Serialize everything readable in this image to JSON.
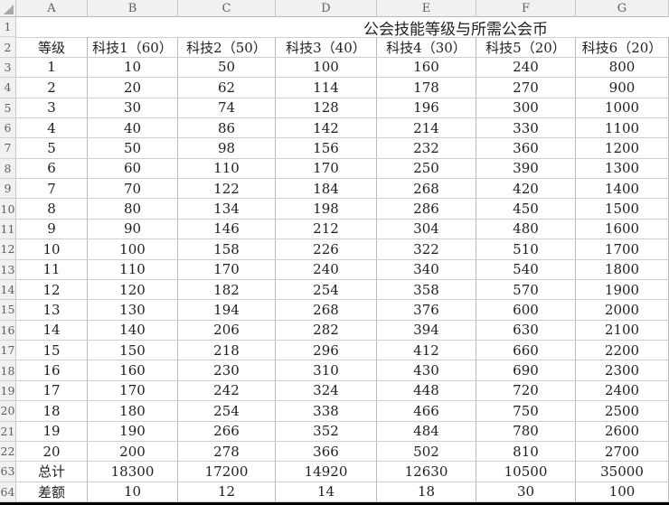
{
  "sheet": {
    "title": "公会技能等级与所需公会币",
    "column_headers": [
      "A",
      "B",
      "C",
      "D",
      "E",
      "F",
      "G"
    ],
    "row_numbers": [
      "1",
      "2"
    ],
    "table_headers": [
      "等级",
      "科技1（60）",
      "科技2（50）",
      "科技3（40）",
      "科技4（30）",
      "科技5（20）",
      "科技6（20）"
    ],
    "rows": [
      {
        "n": "3",
        "cells": [
          "1",
          "10",
          "50",
          "100",
          "160",
          "240",
          "800"
        ]
      },
      {
        "n": "4",
        "cells": [
          "2",
          "20",
          "62",
          "114",
          "178",
          "270",
          "900"
        ]
      },
      {
        "n": "5",
        "cells": [
          "3",
          "30",
          "74",
          "128",
          "196",
          "300",
          "1000"
        ]
      },
      {
        "n": "6",
        "cells": [
          "4",
          "40",
          "86",
          "142",
          "214",
          "330",
          "1100"
        ]
      },
      {
        "n": "7",
        "cells": [
          "5",
          "50",
          "98",
          "156",
          "232",
          "360",
          "1200"
        ]
      },
      {
        "n": "8",
        "cells": [
          "6",
          "60",
          "110",
          "170",
          "250",
          "390",
          "1300"
        ]
      },
      {
        "n": "9",
        "cells": [
          "7",
          "70",
          "122",
          "184",
          "268",
          "420",
          "1400"
        ]
      },
      {
        "n": "10",
        "cells": [
          "8",
          "80",
          "134",
          "198",
          "286",
          "450",
          "1500"
        ]
      },
      {
        "n": "11",
        "cells": [
          "9",
          "90",
          "146",
          "212",
          "304",
          "480",
          "1600"
        ]
      },
      {
        "n": "12",
        "cells": [
          "10",
          "100",
          "158",
          "226",
          "322",
          "510",
          "1700"
        ]
      },
      {
        "n": "13",
        "cells": [
          "11",
          "110",
          "170",
          "240",
          "340",
          "540",
          "1800"
        ]
      },
      {
        "n": "14",
        "cells": [
          "12",
          "120",
          "182",
          "254",
          "358",
          "570",
          "1900"
        ]
      },
      {
        "n": "15",
        "cells": [
          "13",
          "130",
          "194",
          "268",
          "376",
          "600",
          "2000"
        ]
      },
      {
        "n": "16",
        "cells": [
          "14",
          "140",
          "206",
          "282",
          "394",
          "630",
          "2100"
        ]
      },
      {
        "n": "17",
        "cells": [
          "15",
          "150",
          "218",
          "296",
          "412",
          "660",
          "2200"
        ]
      },
      {
        "n": "18",
        "cells": [
          "16",
          "160",
          "230",
          "310",
          "430",
          "690",
          "2300"
        ]
      },
      {
        "n": "19",
        "cells": [
          "17",
          "170",
          "242",
          "324",
          "448",
          "720",
          "2400"
        ]
      },
      {
        "n": "20",
        "cells": [
          "18",
          "180",
          "254",
          "338",
          "466",
          "750",
          "2500"
        ]
      },
      {
        "n": "21",
        "cells": [
          "19",
          "190",
          "266",
          "352",
          "484",
          "780",
          "2600"
        ]
      },
      {
        "n": "22",
        "cells": [
          "20",
          "200",
          "278",
          "366",
          "502",
          "810",
          "2700"
        ]
      },
      {
        "n": "63",
        "cells": [
          "总计",
          "18300",
          "17200",
          "14920",
          "12630",
          "10500",
          "35000"
        ]
      },
      {
        "n": "64",
        "cells": [
          "差额",
          "10",
          "12",
          "14",
          "18",
          "30",
          "100"
        ]
      }
    ],
    "colors": {
      "header_bg": "#f1f1f1",
      "header_text": "#5f5f5f",
      "cell_border": "#b9b9b9",
      "gridline": "#cfcfcf",
      "cell_text": "#1f1f1f",
      "pane_divider": "#000000"
    }
  }
}
